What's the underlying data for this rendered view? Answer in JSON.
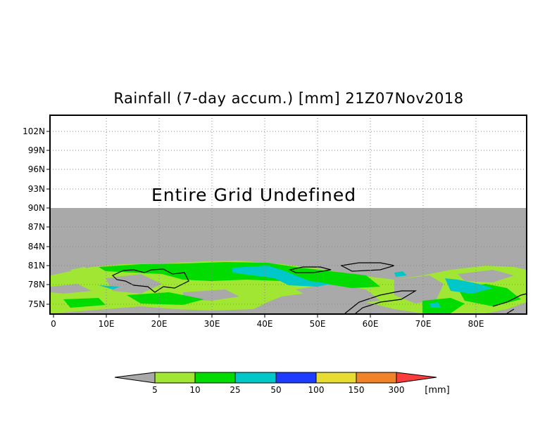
{
  "title": "Rainfall (7-day accum.) [mm] 21Z07Nov2018",
  "annotation": "Entire Grid Undefined",
  "y_axis": {
    "ticks": [
      "102N",
      "99N",
      "96N",
      "93N",
      "90N",
      "87N",
      "84N",
      "81N",
      "78N",
      "75N"
    ]
  },
  "x_axis": {
    "ticks": [
      "0",
      "10E",
      "20E",
      "30E",
      "40E",
      "50E",
      "60E",
      "70E",
      "80E"
    ]
  },
  "colorbar": {
    "unit": "[mm]",
    "labels": [
      "5",
      "10",
      "25",
      "50",
      "100",
      "150",
      "300"
    ],
    "colors": [
      "#a9a9a9",
      "#a0e632",
      "#00dc00",
      "#00c8c8",
      "#1e3cff",
      "#e6dc32",
      "#f08228",
      "#fa3c3c"
    ]
  },
  "map": {
    "undefined_color": "#a9a9a9",
    "coastline_color": "#000000"
  }
}
